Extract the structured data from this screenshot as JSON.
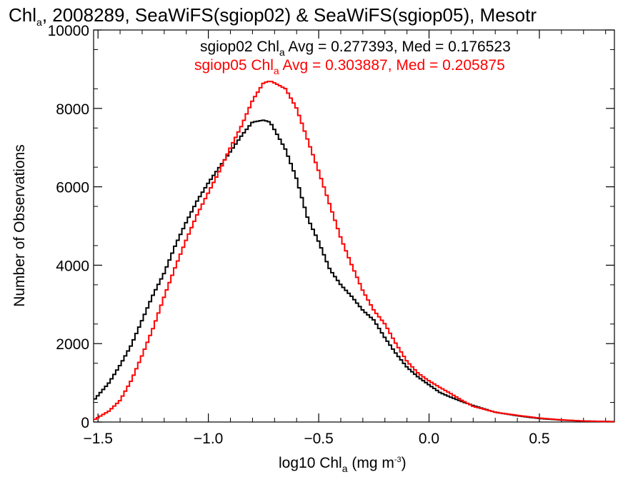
{
  "chart_data": {
    "type": "line",
    "step": true,
    "title": {
      "pre": "Chl",
      "sub": "a",
      "post": ", 2008289, SeaWiFS(sgiop02) & SeaWiFS(sgiop05), Mesotr"
    },
    "xlabel": {
      "pre": "log10 Chl",
      "sub": "a",
      "mid": " (mg m",
      "sup": "-3",
      "post": ")"
    },
    "ylabel": "Number of Observations",
    "xlim": [
      -1.52,
      0.84
    ],
    "ylim": [
      0,
      10000
    ],
    "xticks": [
      -1.5,
      -1.0,
      -0.5,
      0.0,
      0.5
    ],
    "xtick_labels": [
      "−1.5",
      "−1.0",
      "−0.5",
      "0.0",
      "0.5"
    ],
    "yticks": [
      0,
      2000,
      4000,
      6000,
      8000,
      10000
    ],
    "ytick_labels": [
      "0",
      "2000",
      "4000",
      "6000",
      "8000",
      "10000"
    ],
    "grid": false,
    "legend_position": "top-right",
    "series": [
      {
        "name": "sgiop02",
        "color": "#000000",
        "legend": {
          "pre": "sgiop02 Chl",
          "sub": "a",
          "post": " Avg = 0.277393, Med = 0.176523"
        },
        "x": [
          -1.52,
          -1.45,
          -1.4,
          -1.35,
          -1.3,
          -1.25,
          -1.2,
          -1.15,
          -1.1,
          -1.05,
          -1.0,
          -0.95,
          -0.9,
          -0.85,
          -0.8,
          -0.75,
          -0.72,
          -0.7,
          -0.65,
          -0.6,
          -0.55,
          -0.5,
          -0.45,
          -0.4,
          -0.35,
          -0.3,
          -0.25,
          -0.2,
          -0.15,
          -0.1,
          -0.05,
          0.0,
          0.05,
          0.1,
          0.15,
          0.2,
          0.3,
          0.4,
          0.5,
          0.6,
          0.7,
          0.84
        ],
        "y": [
          550,
          1000,
          1450,
          1950,
          2600,
          3250,
          3800,
          4500,
          5100,
          5650,
          6100,
          6500,
          6900,
          7300,
          7650,
          7700,
          7650,
          7450,
          6950,
          6200,
          5200,
          4600,
          3900,
          3500,
          3200,
          2850,
          2600,
          2150,
          1750,
          1400,
          1150,
          950,
          750,
          630,
          520,
          420,
          250,
          160,
          90,
          50,
          25,
          10
        ]
      },
      {
        "name": "sgiop05",
        "color": "#ff0000",
        "legend": {
          "pre": "sgiop05 Chl",
          "sub": "a",
          "post": " Avg = 0.303887, Med = 0.205875"
        },
        "x": [
          -1.52,
          -1.45,
          -1.4,
          -1.35,
          -1.3,
          -1.25,
          -1.2,
          -1.15,
          -1.1,
          -1.05,
          -1.0,
          -0.95,
          -0.9,
          -0.85,
          -0.8,
          -0.75,
          -0.72,
          -0.7,
          -0.65,
          -0.6,
          -0.55,
          -0.5,
          -0.45,
          -0.4,
          -0.35,
          -0.3,
          -0.25,
          -0.2,
          -0.15,
          -0.1,
          -0.05,
          0.0,
          0.05,
          0.1,
          0.15,
          0.2,
          0.3,
          0.4,
          0.5,
          0.6,
          0.7,
          0.84
        ],
        "y": [
          50,
          280,
          550,
          1050,
          1700,
          2400,
          3200,
          3950,
          4650,
          5300,
          5850,
          6400,
          7000,
          7550,
          8200,
          8650,
          8700,
          8650,
          8500,
          8000,
          7200,
          6400,
          5550,
          4700,
          4000,
          3350,
          2850,
          2500,
          2000,
          1550,
          1250,
          1050,
          880,
          720,
          550,
          400,
          250,
          170,
          100,
          55,
          25,
          10
        ]
      }
    ]
  }
}
